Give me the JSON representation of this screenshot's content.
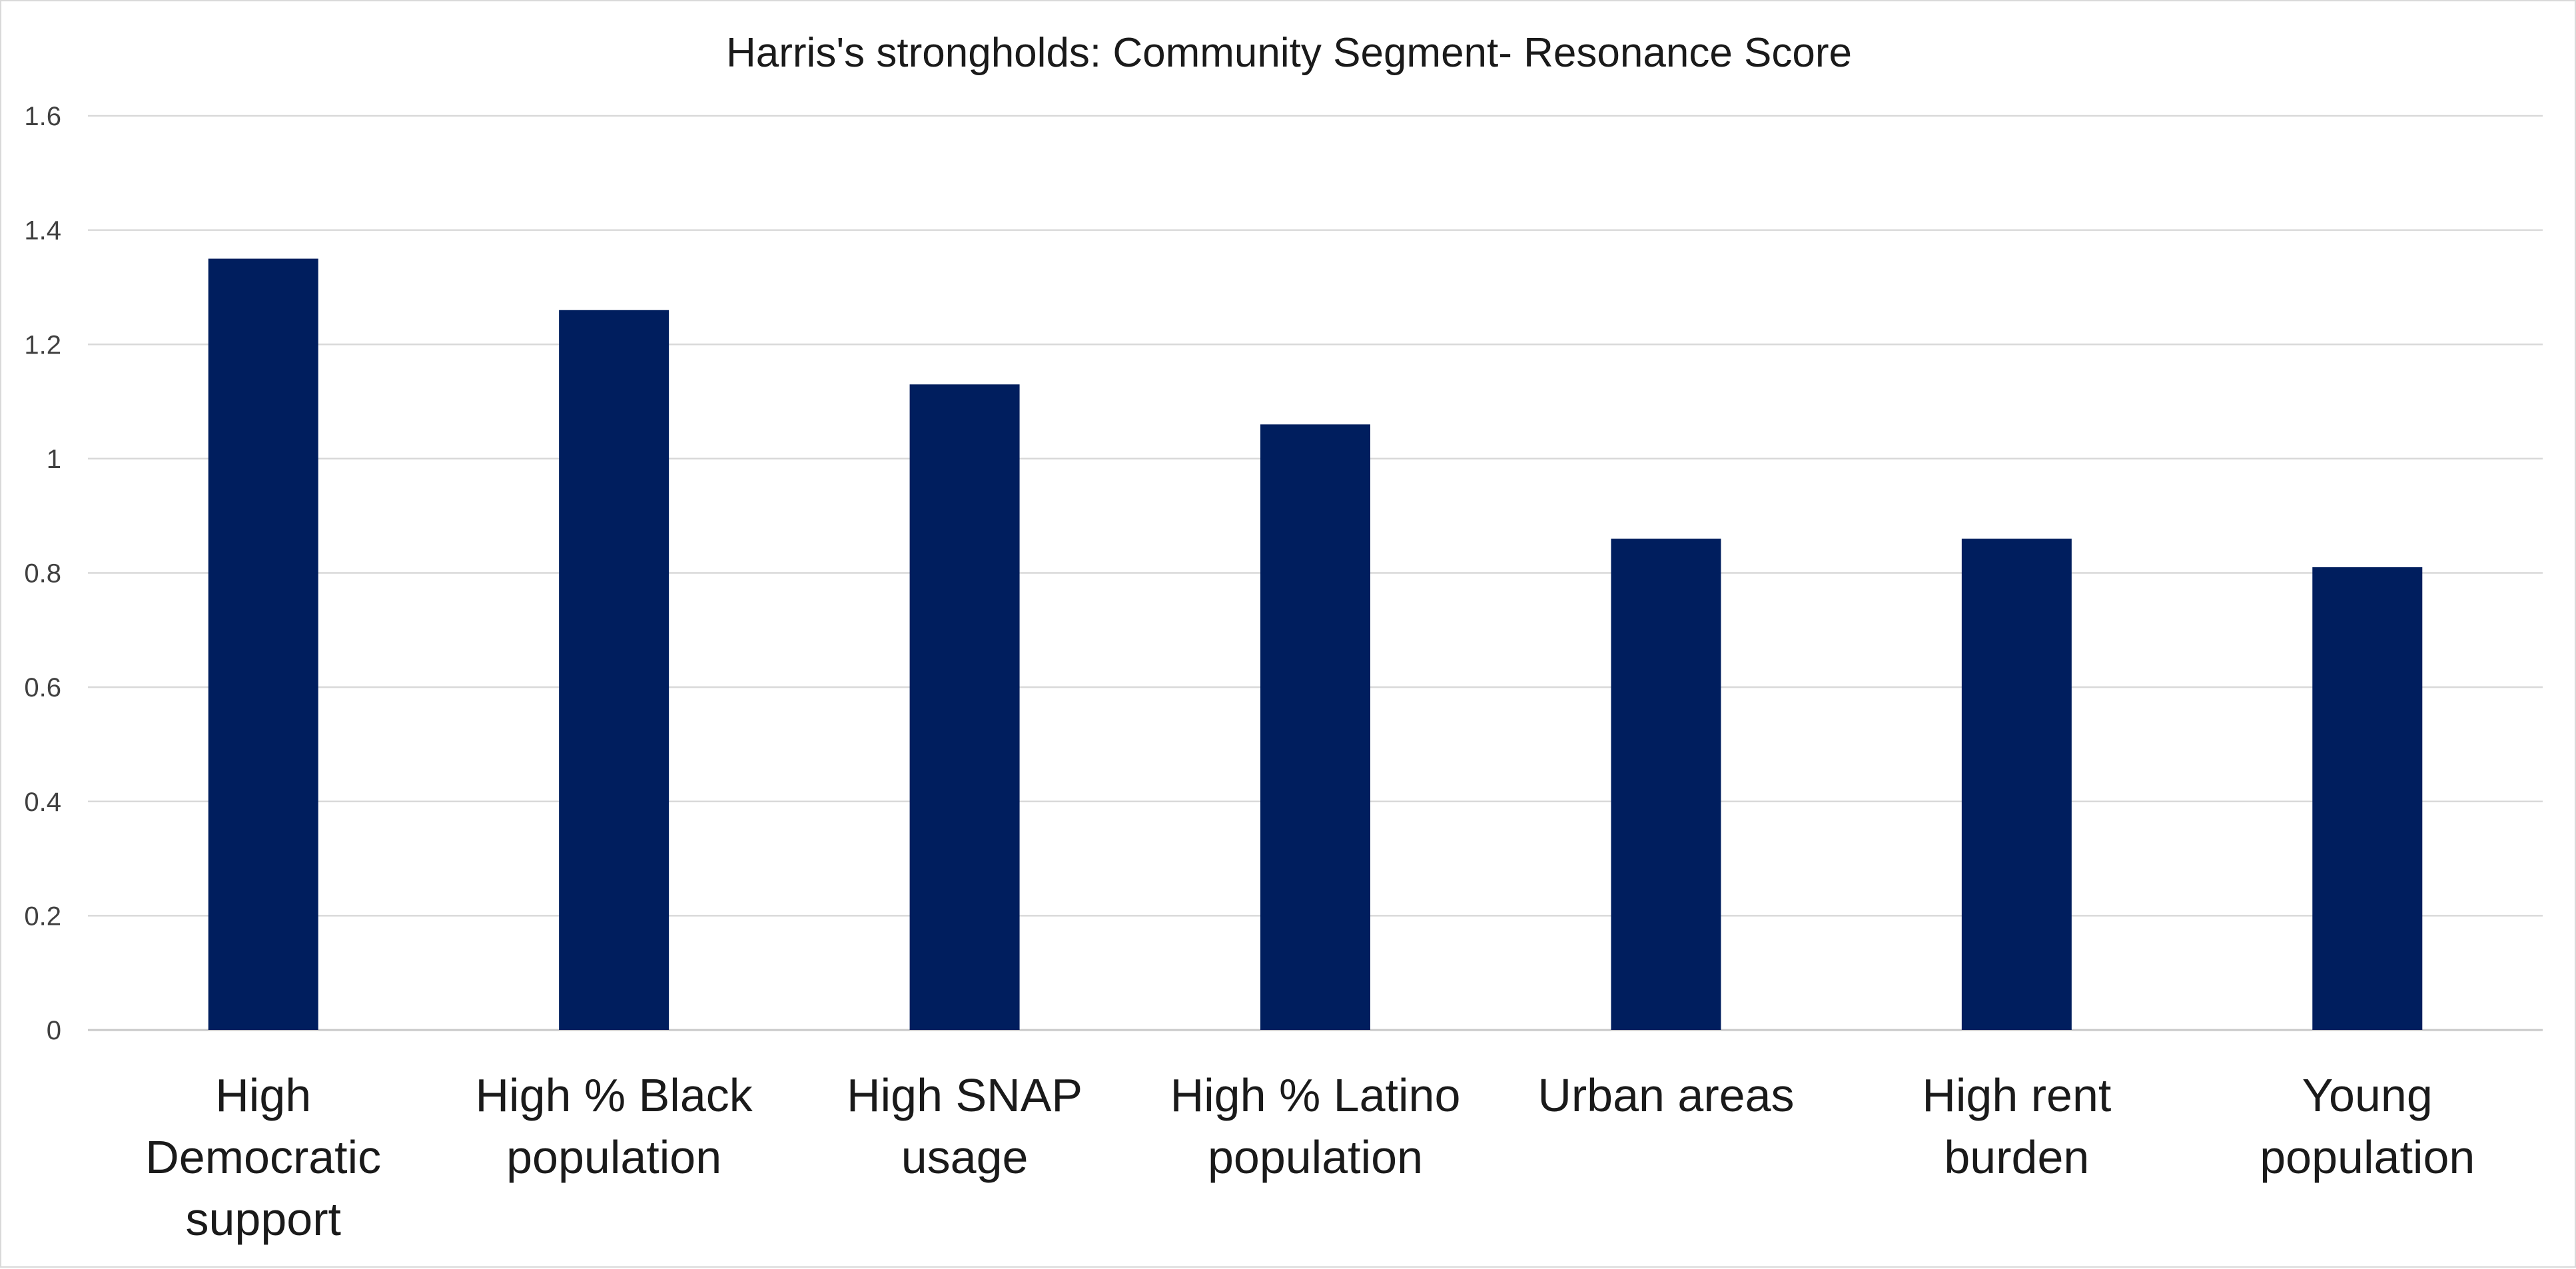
{
  "chart_data": {
    "type": "bar",
    "title": "Harris's strongholds:  Community Segment- Resonance Score",
    "xlabel": "",
    "ylabel": "",
    "categories": [
      [
        "High",
        "Democratic",
        "support"
      ],
      [
        "High % Black",
        "population"
      ],
      [
        "High SNAP",
        "usage"
      ],
      [
        "High % Latino",
        "population"
      ],
      [
        "Urban areas"
      ],
      [
        "High rent",
        "burden"
      ],
      [
        "Young",
        "population"
      ]
    ],
    "values": [
      1.35,
      1.26,
      1.13,
      1.06,
      0.86,
      0.86,
      0.81
    ],
    "ylim": [
      0,
      1.6
    ],
    "yticks": [
      "0",
      "0.2",
      "0.4",
      "0.6",
      "0.8",
      "1",
      "1.2",
      "1.4",
      "1.6"
    ],
    "grid": true,
    "legend": "none",
    "bar_color": "#001e5e"
  }
}
